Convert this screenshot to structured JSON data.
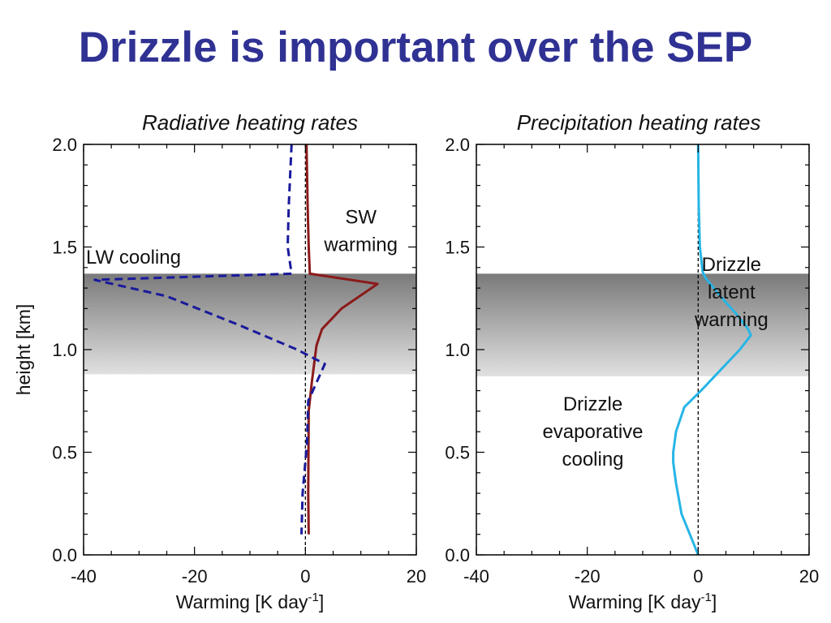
{
  "slide": {
    "title": "Drizzle is important over the SEP"
  },
  "colors": {
    "title": "#2f3193",
    "sw_line": "#8b1a1a",
    "lw_line": "#1a1a9c",
    "precip_line": "#26b5e6",
    "band_top": "#7a7a7a",
    "band_bottom": "#e0e0e0"
  },
  "chart_data": [
    {
      "type": "line",
      "title": "Radiative heating rates",
      "xlabel_main": "Warming [K day",
      "xlabel_sup": "-1",
      "xlabel_close": "]",
      "ylabel": "height [km]",
      "xlim": [
        -40,
        20
      ],
      "ylim": [
        0,
        2.0
      ],
      "x_ticks": [
        "-40",
        "-20",
        "0",
        "20"
      ],
      "y_ticks": [
        "0.0",
        "0.5",
        "1.0",
        "1.5",
        "2.0"
      ],
      "shaded_band": {
        "y_from": 0.88,
        "y_to": 1.37
      },
      "zero_line": true,
      "series": [
        {
          "key": "sw",
          "style": "solid",
          "points": [
            [
              0.2,
              2.0
            ],
            [
              0.4,
              1.7
            ],
            [
              0.6,
              1.5
            ],
            [
              0.8,
              1.37
            ],
            [
              13,
              1.32
            ],
            [
              6.5,
              1.2
            ],
            [
              3,
              1.1
            ],
            [
              2,
              1.02
            ],
            [
              1.2,
              0.85
            ],
            [
              0.6,
              0.7
            ],
            [
              0.5,
              0.3
            ],
            [
              0.6,
              0.1
            ]
          ]
        },
        {
          "key": "lw",
          "style": "dashed",
          "points": [
            [
              -2.5,
              2.0
            ],
            [
              -3.0,
              1.7
            ],
            [
              -3.2,
              1.5
            ],
            [
              -2.5,
              1.37
            ],
            [
              -38,
              1.34
            ],
            [
              -25,
              1.26
            ],
            [
              -12,
              1.12
            ],
            [
              -1.5,
              1.0
            ],
            [
              3.5,
              0.93
            ],
            [
              0.5,
              0.75
            ],
            [
              0.3,
              0.55
            ],
            [
              -0.5,
              0.3
            ],
            [
              -0.7,
              0.1
            ]
          ]
        }
      ],
      "annotations": [
        {
          "key": "lw_label",
          "lines": [
            "LW cooling"
          ],
          "x": -31,
          "y": 1.45
        },
        {
          "key": "sw_label",
          "lines": [
            "SW",
            "warming"
          ],
          "x": 10,
          "y": 1.58
        }
      ]
    },
    {
      "type": "line",
      "title": "Precipitation heating rates",
      "xlabel_main": "Warming [K day",
      "xlabel_sup": "-1",
      "xlabel_close": "]",
      "ylabel": "",
      "xlim": [
        -40,
        20
      ],
      "ylim": [
        0,
        2.0
      ],
      "x_ticks": [
        "-40",
        "-20",
        "0",
        "20"
      ],
      "y_ticks": [
        "0.0",
        "0.5",
        "1.0",
        "1.5",
        "2.0"
      ],
      "shaded_band": {
        "y_from": 0.87,
        "y_to": 1.37
      },
      "zero_line": true,
      "series": [
        {
          "key": "precip",
          "style": "solid",
          "points": [
            [
              0,
              2.0
            ],
            [
              0.1,
              1.7
            ],
            [
              0.3,
              1.5
            ],
            [
              0.8,
              1.38
            ],
            [
              1.3,
              1.35
            ],
            [
              4,
              1.26
            ],
            [
              7,
              1.17
            ],
            [
              9,
              1.1
            ],
            [
              9.5,
              1.07
            ],
            [
              7.5,
              1.0
            ],
            [
              4,
              0.9
            ],
            [
              0.5,
              0.8
            ],
            [
              -2.5,
              0.72
            ],
            [
              -4,
              0.6
            ],
            [
              -4.5,
              0.5
            ],
            [
              -4.5,
              0.45
            ],
            [
              -4,
              0.35
            ],
            [
              -3,
              0.2
            ],
            [
              -1.5,
              0.1
            ],
            [
              0,
              0.0
            ]
          ]
        }
      ],
      "annotations": [
        {
          "key": "latent_label",
          "lines": [
            "Drizzle",
            "latent",
            "warming"
          ],
          "x": 6,
          "y": 1.28
        },
        {
          "key": "evap_label",
          "lines": [
            "Drizzle",
            "evaporative",
            "cooling"
          ],
          "x": -19,
          "y": 0.6
        }
      ]
    }
  ]
}
